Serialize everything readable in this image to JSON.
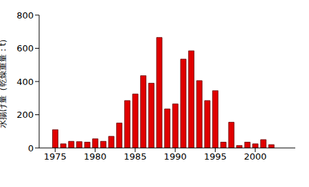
{
  "chart_data": {
    "type": "bar",
    "y_label": "水揚げ量（乾燥重量：t）",
    "x": [
      1975,
      1976,
      1977,
      1978,
      1979,
      1980,
      1981,
      1982,
      1983,
      1984,
      1985,
      1986,
      1987,
      1988,
      1989,
      1990,
      1991,
      1992,
      1993,
      1994,
      1995,
      1996,
      1997,
      1998,
      1999,
      2000,
      2001,
      2002
    ],
    "values": [
      110,
      25,
      40,
      38,
      35,
      55,
      40,
      70,
      150,
      285,
      325,
      435,
      390,
      665,
      235,
      265,
      535,
      585,
      405,
      285,
      345,
      35,
      155,
      15,
      35,
      25,
      50,
      20
    ],
    "color": "#e00000",
    "xlim": [
      1973,
      2005
    ],
    "xticks": [
      1975,
      1980,
      1985,
      1990,
      1995,
      2000
    ],
    "ylim": [
      0,
      800
    ],
    "yticks": [
      0,
      200,
      400,
      600,
      800
    ],
    "grid": false
  }
}
